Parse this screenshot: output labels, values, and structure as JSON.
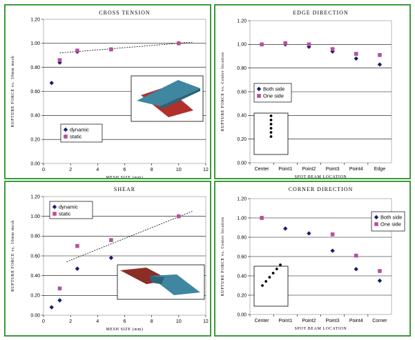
{
  "chart_data": [
    {
      "id": "p0",
      "type": "scatter",
      "title": "CROSS TENSION",
      "xlabel": "MESH SIZE (mm)",
      "ylabel": "RUPTURE FORCE vs. 10mm mesh",
      "xlim": [
        0,
        12
      ],
      "ylim": [
        0,
        1.2
      ],
      "xticks": [
        "0",
        "2",
        "4",
        "6",
        "8",
        "10",
        "12"
      ],
      "yticks": [
        "0.00",
        "0.20",
        "0.40",
        "0.60",
        "0.80",
        "1.00",
        "1.20"
      ],
      "grid": true,
      "legend_position": "bottom-left",
      "series": [
        {
          "name": "dynamic",
          "marker": "diamond",
          "color": "#1a1a6e",
          "points": [
            [
              0.6,
              0.67
            ],
            [
              1.2,
              0.84
            ],
            [
              2.5,
              0.93
            ],
            [
              5.0,
              0.95
            ],
            [
              10.0,
              1.0
            ]
          ]
        },
        {
          "name": "static",
          "marker": "square",
          "color": "#b8509c",
          "points": [
            [
              1.2,
              0.86
            ],
            [
              2.5,
              0.94
            ],
            [
              5.0,
              0.95
            ],
            [
              10.0,
              1.0
            ]
          ]
        }
      ],
      "trendline": [
        [
          1.2,
          0.92
        ],
        [
          11.0,
          1.01
        ]
      ]
    },
    {
      "id": "p1",
      "type": "scatter",
      "title": "EDGE DIRECTION",
      "xlabel": "SPOT BEAM LOCATION",
      "ylabel": "RUPTURE FORCE vs. Center location",
      "ylim": [
        0,
        1.2
      ],
      "categories": [
        "Center",
        "Point1",
        "Point2",
        "Point3",
        "Point4",
        "Edge"
      ],
      "yticks": [
        "0.00",
        "0.20",
        "0.40",
        "0.60",
        "0.80",
        "1.00",
        "1.20"
      ],
      "grid": true,
      "legend_position": "left",
      "series": [
        {
          "name": "Both side",
          "marker": "diamond",
          "color": "#1a1a6e",
          "values": [
            1.0,
            1.0,
            0.98,
            0.94,
            0.88,
            0.83
          ]
        },
        {
          "name": "One side",
          "marker": "square",
          "color": "#b8509c",
          "values": [
            1.0,
            1.01,
            1.0,
            0.96,
            0.92,
            0.91
          ]
        }
      ]
    },
    {
      "id": "p2",
      "type": "scatter",
      "title": "SHEAR",
      "xlabel": "MESH SIZE (mm)",
      "ylabel": "RUPTURE FORCE vs. 10mm mesh",
      "xlim": [
        0,
        12
      ],
      "ylim": [
        0,
        1.2
      ],
      "xticks": [
        "0",
        "2",
        "4",
        "6",
        "8",
        "10",
        "12"
      ],
      "yticks": [
        "0.00",
        "0.20",
        "0.40",
        "0.60",
        "0.80",
        "1.00",
        "1.20"
      ],
      "grid": true,
      "legend_position": "top-left",
      "series": [
        {
          "name": "dynamic",
          "marker": "diamond",
          "color": "#1a1a6e",
          "points": [
            [
              0.6,
              0.08
            ],
            [
              1.2,
              0.15
            ],
            [
              2.5,
              0.47
            ],
            [
              5.0,
              0.58
            ],
            [
              10.0,
              1.0
            ]
          ]
        },
        {
          "name": "static",
          "marker": "square",
          "color": "#b8509c",
          "points": [
            [
              1.2,
              0.27
            ],
            [
              2.5,
              0.7
            ],
            [
              5.0,
              0.76
            ],
            [
              10.0,
              1.0
            ]
          ]
        }
      ],
      "trendline": [
        [
          1.7,
          0.54
        ],
        [
          11.0,
          1.05
        ]
      ]
    },
    {
      "id": "p3",
      "type": "scatter",
      "title": "CORNER DIRECTION",
      "xlabel": "SPOT BEAM LOCATION",
      "ylabel": "RUPTURE FORCE vs. Center location",
      "ylim": [
        0,
        1.2
      ],
      "categories": [
        "Center",
        "Point1",
        "Point2",
        "Point3",
        "Point4",
        "Corner"
      ],
      "yticks": [
        "0.00",
        "0.20",
        "0.40",
        "0.60",
        "0.80",
        "1.00",
        "1.20"
      ],
      "grid": true,
      "legend_position": "right",
      "series": [
        {
          "name": "Both side",
          "marker": "diamond",
          "color": "#1a1a6e",
          "values": [
            1.0,
            0.89,
            0.84,
            0.66,
            0.47,
            0.35
          ]
        },
        {
          "name": "One side",
          "marker": "square",
          "color": "#b8509c",
          "values": [
            1.0,
            null,
            null,
            0.83,
            0.61,
            0.45
          ]
        }
      ]
    }
  ]
}
